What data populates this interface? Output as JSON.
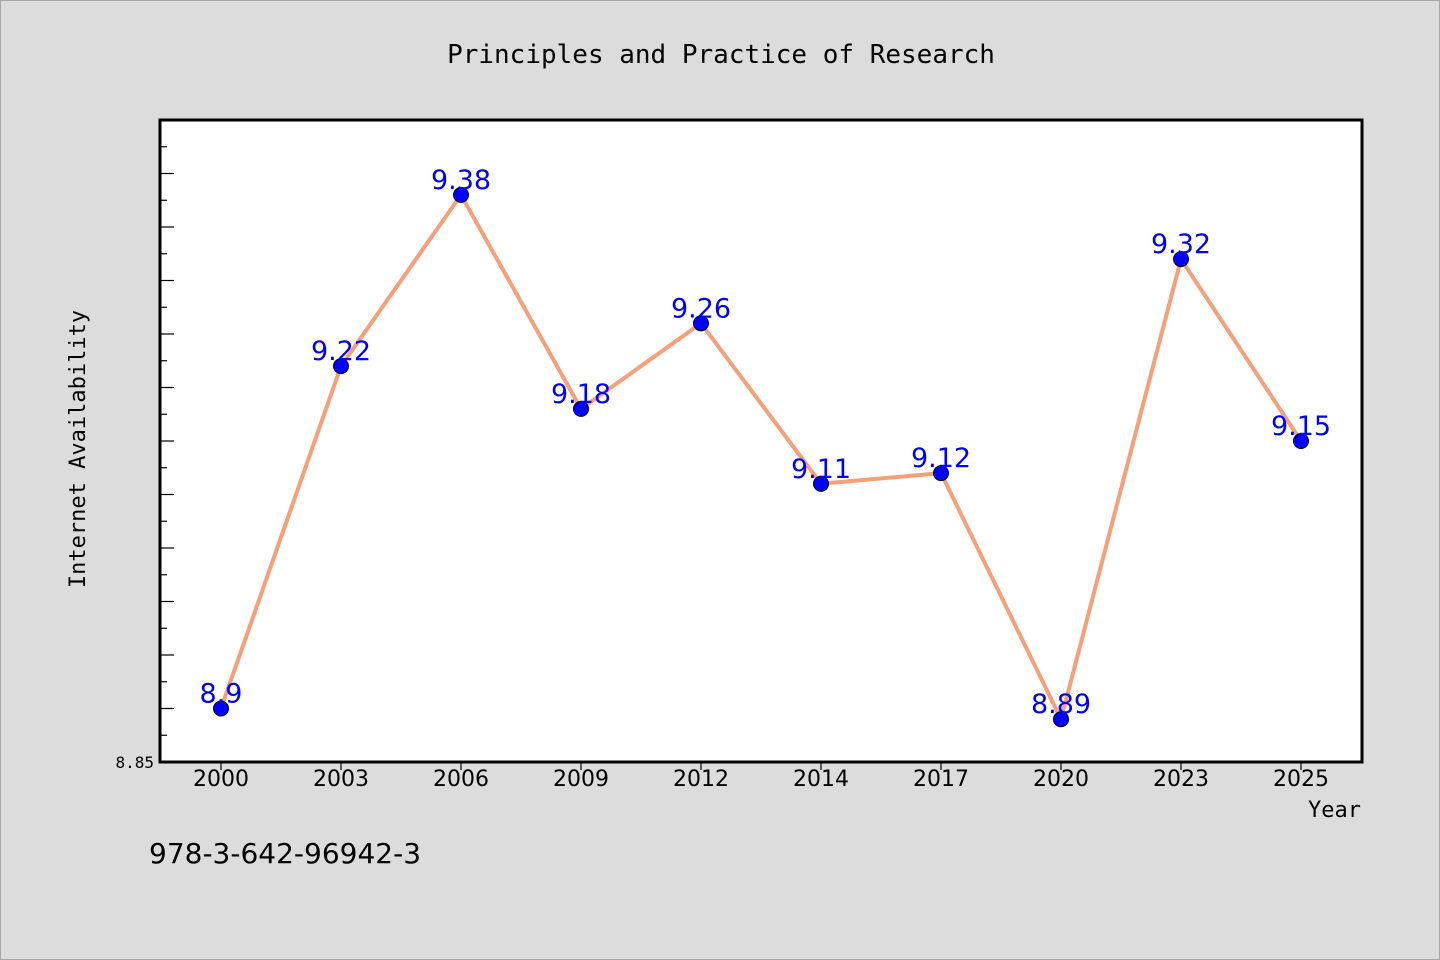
{
  "chart_data": {
    "type": "line",
    "title": "Principles and Practice of Research",
    "xlabel": "Year",
    "ylabel": "Internet Availability",
    "categories": [
      "2000",
      "2003",
      "2006",
      "2009",
      "2012",
      "2014",
      "2017",
      "2020",
      "2023",
      "2025"
    ],
    "series": [
      {
        "values": [
          8.9,
          9.22,
          9.38,
          9.18,
          9.26,
          9.11,
          9.12,
          8.89,
          9.32,
          9.15
        ],
        "labels": [
          "8.9",
          "9.22",
          "9.38",
          "9.18",
          "9.26",
          "9.11",
          "9.12",
          "8.89",
          "9.32",
          "9.15"
        ],
        "line_color": "#f5a07a",
        "marker_color": "#0000ff",
        "label_color": "#0000ff"
      }
    ],
    "ylim": [
      8.85,
      9.45
    ],
    "y_tick_labels": [
      "8.85"
    ],
    "grid": false,
    "legend": "none"
  },
  "footer": {
    "isbn": "978-3-642-96942-3"
  },
  "colors": {
    "background": "#dcdcdc",
    "plot_background": "#ffffff",
    "axis": "#000000"
  }
}
